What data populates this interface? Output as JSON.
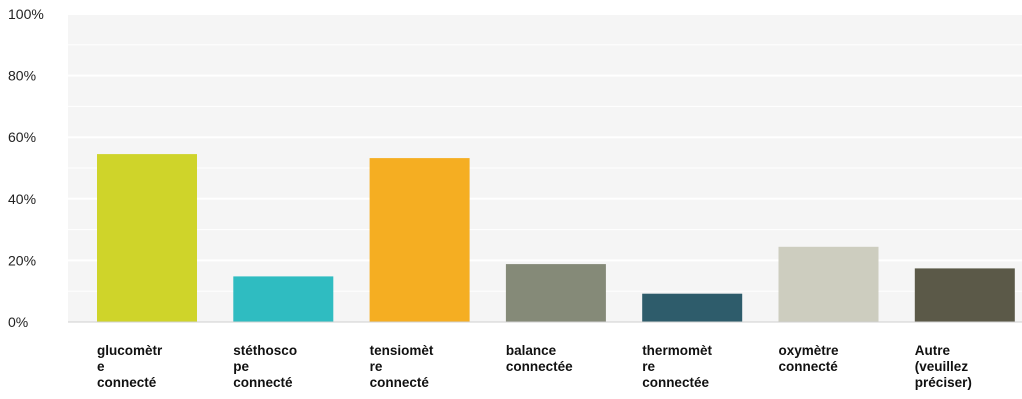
{
  "chart_data": {
    "type": "bar",
    "categories": [
      "glucomètr\ne\nconnecté",
      "stéthosco\npe\nconnecté",
      "tensiomèt\nre\nconnecté",
      "balance\nconnectée",
      "thermomèt\nre\nconnectée",
      "oxymètre\nconnecté",
      "Autre\n(veuillez\npréciser)"
    ],
    "values": [
      54.5,
      14.8,
      53.2,
      18.8,
      9.2,
      24.4,
      17.4
    ],
    "colors": [
      "#cfd42a",
      "#2fbcc1",
      "#f5ae22",
      "#858a78",
      "#2e5c6b",
      "#cdcdbf",
      "#5b5948"
    ],
    "yticks": [
      "0%",
      "20%",
      "40%",
      "60%",
      "80%",
      "100%"
    ],
    "ylim": [
      0,
      100
    ],
    "grid": true,
    "legend": "none"
  }
}
